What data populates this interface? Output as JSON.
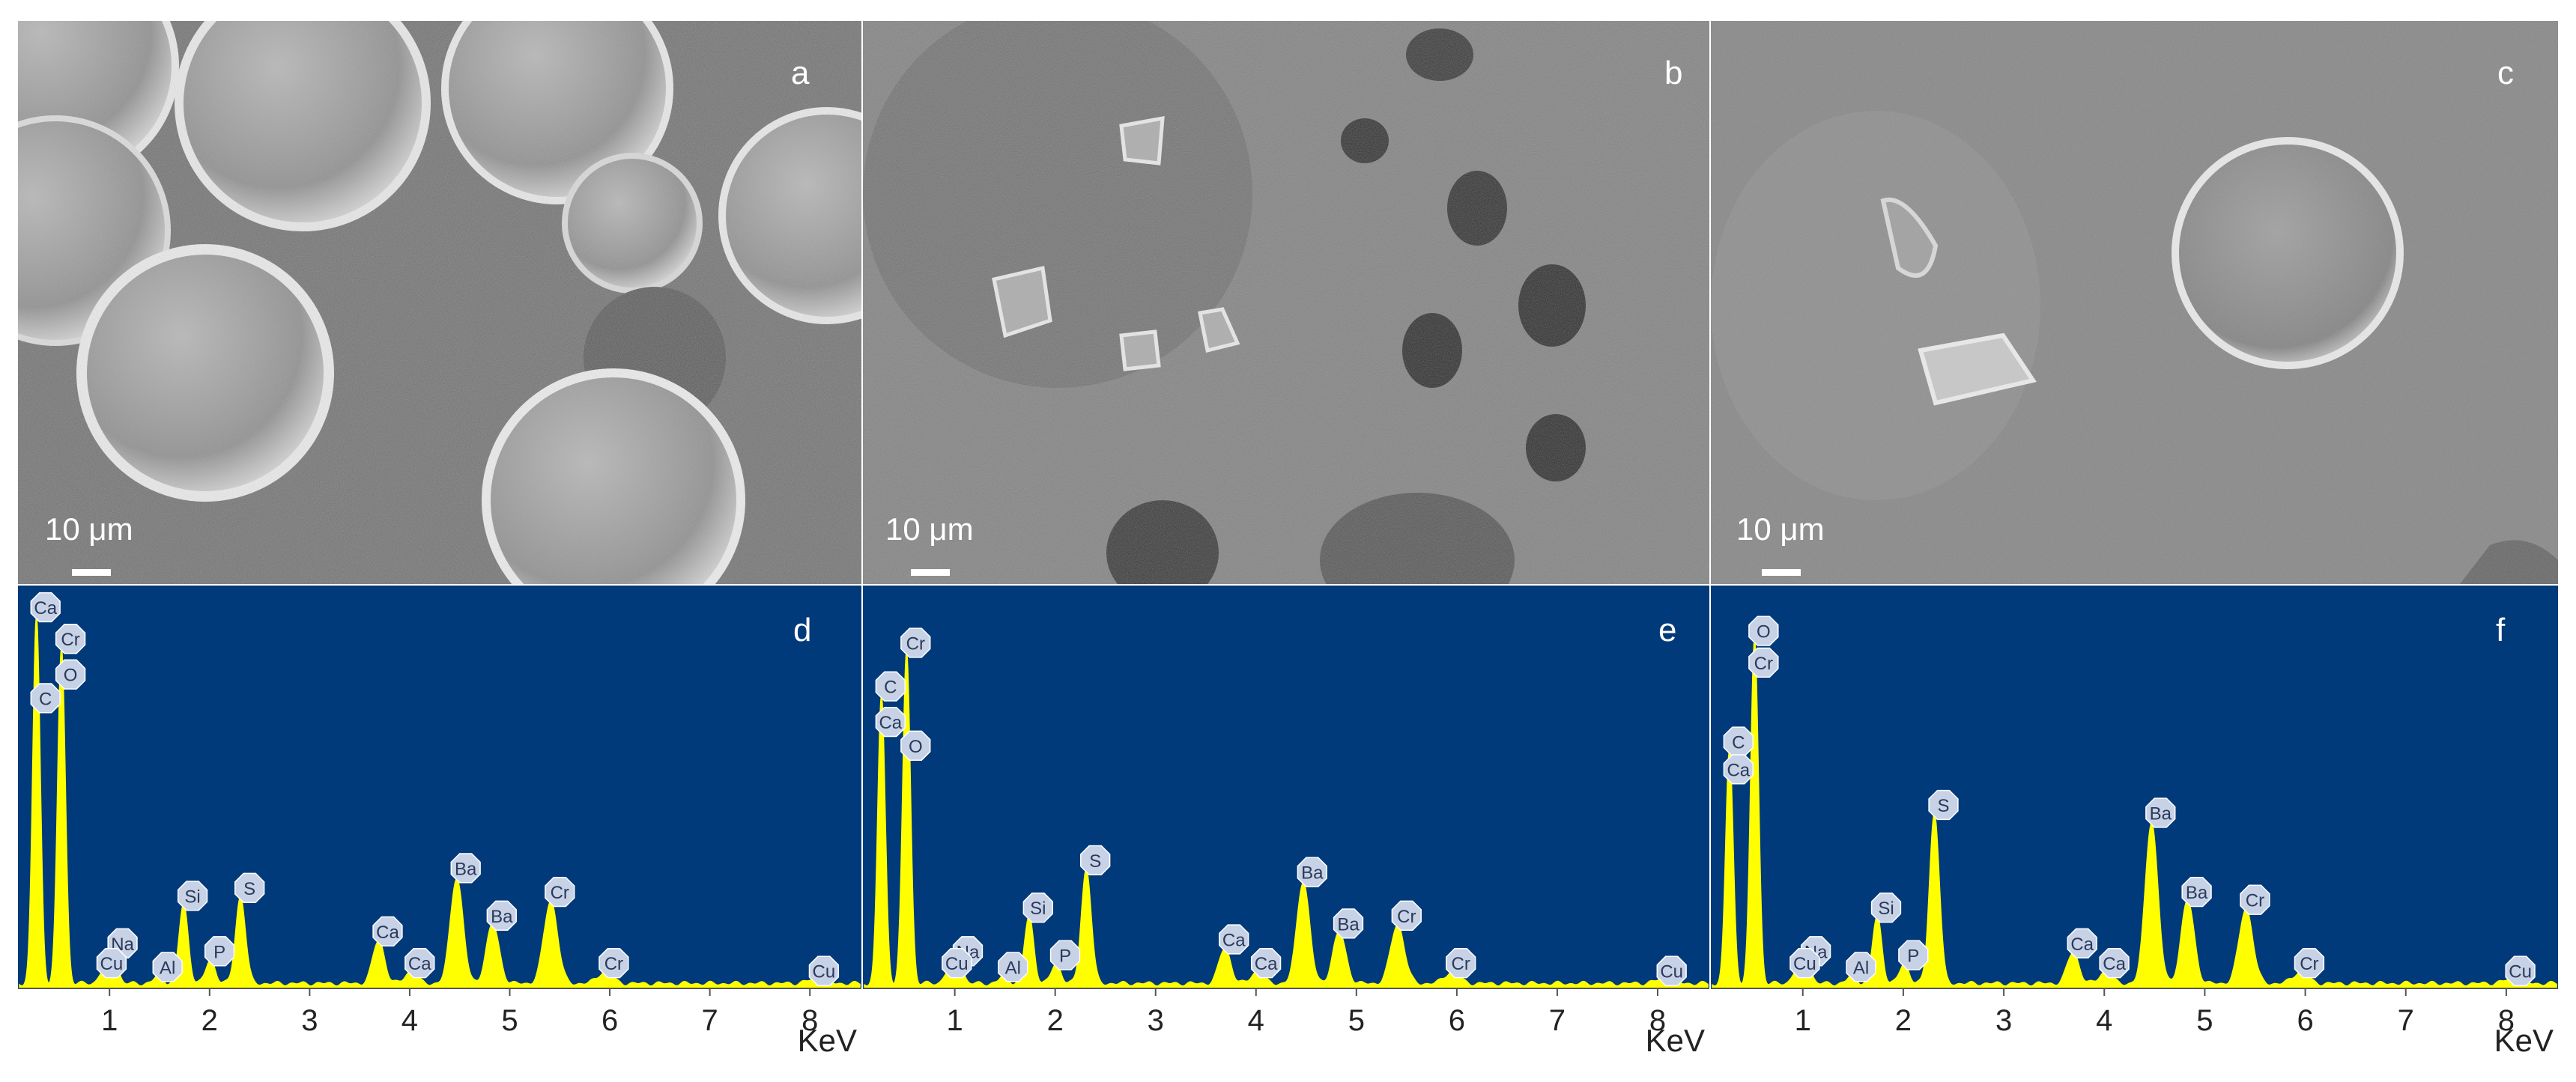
{
  "colors": {
    "spectrum_background": "#003a7a",
    "spectrum_fill": "#ffff00",
    "peak_marker": "#c8d2e6",
    "axis_area": "#ffffff"
  },
  "sem_panels": [
    {
      "label": "a",
      "scale_bar": "10 μm"
    },
    {
      "label": "b",
      "scale_bar": "10 μm"
    },
    {
      "label": "c",
      "scale_bar": "10 μm"
    }
  ],
  "chart_data": [
    {
      "type": "area",
      "panel_label": "d",
      "xlabel": "KeV",
      "xlim": [
        0.1,
        8.5
      ],
      "x_ticks": [
        "1",
        "2",
        "3",
        "4",
        "5",
        "6",
        "7",
        "8"
      ],
      "ylim": [
        0,
        100
      ],
      "peaks": [
        {
          "label": "Ca",
          "x": 0.27,
          "y": 93
        },
        {
          "label": "C",
          "x": 0.27,
          "y": 70
        },
        {
          "label": "Cr",
          "x": 0.52,
          "y": 85
        },
        {
          "label": "O",
          "x": 0.52,
          "y": 76
        },
        {
          "label": "Na",
          "x": 1.04,
          "y": 8
        },
        {
          "label": "Cu",
          "x": 0.93,
          "y": 3
        },
        {
          "label": "Al",
          "x": 1.49,
          "y": 2
        },
        {
          "label": "Si",
          "x": 1.74,
          "y": 20
        },
        {
          "label": "P",
          "x": 2.01,
          "y": 6
        },
        {
          "label": "S",
          "x": 2.31,
          "y": 22
        },
        {
          "label": "Ca",
          "x": 3.69,
          "y": 11
        },
        {
          "label": "Ca",
          "x": 4.01,
          "y": 3
        },
        {
          "label": "Ba",
          "x": 4.47,
          "y": 27
        },
        {
          "label": "Ba",
          "x": 4.83,
          "y": 15
        },
        {
          "label": "Cr",
          "x": 5.41,
          "y": 21
        },
        {
          "label": "Cr",
          "x": 5.95,
          "y": 3
        },
        {
          "label": "Cu",
          "x": 8.05,
          "y": 1
        }
      ]
    },
    {
      "type": "area",
      "panel_label": "e",
      "xlabel": "KeV",
      "xlim": [
        0.1,
        8.5
      ],
      "x_ticks": [
        "1",
        "2",
        "3",
        "4",
        "5",
        "6",
        "7",
        "8"
      ],
      "ylim": [
        0,
        100
      ],
      "peaks": [
        {
          "label": "Cr",
          "x": 0.52,
          "y": 84
        },
        {
          "label": "C",
          "x": 0.27,
          "y": 73
        },
        {
          "label": "Ca",
          "x": 0.27,
          "y": 64
        },
        {
          "label": "O",
          "x": 0.52,
          "y": 58
        },
        {
          "label": "Na",
          "x": 1.04,
          "y": 6
        },
        {
          "label": "Cu",
          "x": 0.93,
          "y": 3
        },
        {
          "label": "Al",
          "x": 1.49,
          "y": 2
        },
        {
          "label": "Si",
          "x": 1.74,
          "y": 17
        },
        {
          "label": "P",
          "x": 2.01,
          "y": 5
        },
        {
          "label": "S",
          "x": 2.31,
          "y": 29
        },
        {
          "label": "Ca",
          "x": 3.69,
          "y": 9
        },
        {
          "label": "Ca",
          "x": 4.01,
          "y": 3
        },
        {
          "label": "Ba",
          "x": 4.47,
          "y": 26
        },
        {
          "label": "Ba",
          "x": 4.83,
          "y": 13
        },
        {
          "label": "Cr",
          "x": 5.41,
          "y": 15
        },
        {
          "label": "Cr",
          "x": 5.95,
          "y": 3
        },
        {
          "label": "Cu",
          "x": 8.05,
          "y": 1
        }
      ]
    },
    {
      "type": "area",
      "panel_label": "f",
      "xlabel": "KeV",
      "xlim": [
        0.1,
        8.5
      ],
      "x_ticks": [
        "1",
        "2",
        "3",
        "4",
        "5",
        "6",
        "7",
        "8"
      ],
      "ylim": [
        0,
        100
      ],
      "peaks": [
        {
          "label": "O",
          "x": 0.52,
          "y": 87
        },
        {
          "label": "Cr",
          "x": 0.52,
          "y": 79
        },
        {
          "label": "C",
          "x": 0.27,
          "y": 59
        },
        {
          "label": "Ca",
          "x": 0.27,
          "y": 52
        },
        {
          "label": "Na",
          "x": 1.04,
          "y": 6
        },
        {
          "label": "Cu",
          "x": 0.93,
          "y": 3
        },
        {
          "label": "Al",
          "x": 1.49,
          "y": 2
        },
        {
          "label": "Si",
          "x": 1.74,
          "y": 17
        },
        {
          "label": "P",
          "x": 2.01,
          "y": 5
        },
        {
          "label": "S",
          "x": 2.31,
          "y": 43
        },
        {
          "label": "Ca",
          "x": 3.69,
          "y": 8
        },
        {
          "label": "Ca",
          "x": 4.01,
          "y": 3
        },
        {
          "label": "Ba",
          "x": 4.47,
          "y": 41
        },
        {
          "label": "Ba",
          "x": 4.83,
          "y": 21
        },
        {
          "label": "Cr",
          "x": 5.41,
          "y": 19
        },
        {
          "label": "Cr",
          "x": 5.95,
          "y": 3
        },
        {
          "label": "Cu",
          "x": 8.05,
          "y": 1
        }
      ]
    }
  ]
}
